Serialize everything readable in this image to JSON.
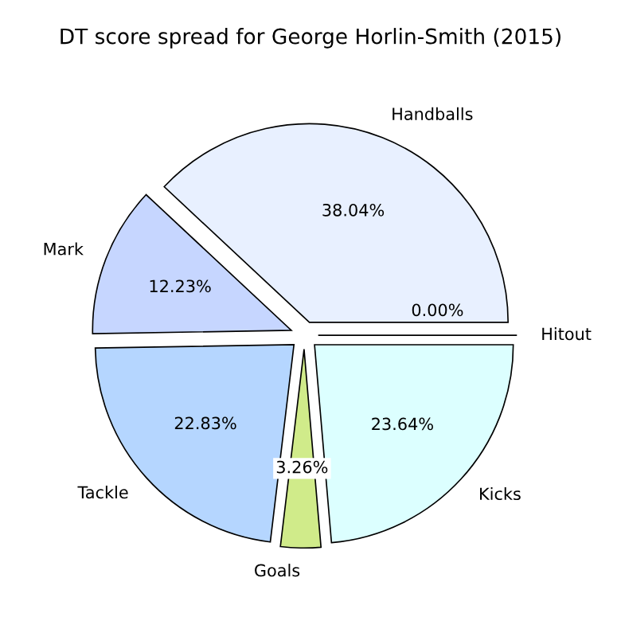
{
  "chart_data": {
    "type": "pie",
    "title": "DT score spread for George Horlin-Smith (2015)",
    "categories": [
      "Hitout",
      "Handballs",
      "Mark",
      "Tackle",
      "Goals",
      "Kicks"
    ],
    "values": [
      0.0,
      38.04,
      12.23,
      22.83,
      3.26,
      23.64
    ],
    "value_labels": [
      "0.00%",
      "38.04%",
      "12.23%",
      "22.83%",
      "3.26%",
      "23.64%"
    ],
    "colors": [
      "#e0e0ff",
      "#e8f0ff",
      "#c6d6ff",
      "#b5d6ff",
      "#d0eb8a",
      "#dcffff"
    ]
  }
}
